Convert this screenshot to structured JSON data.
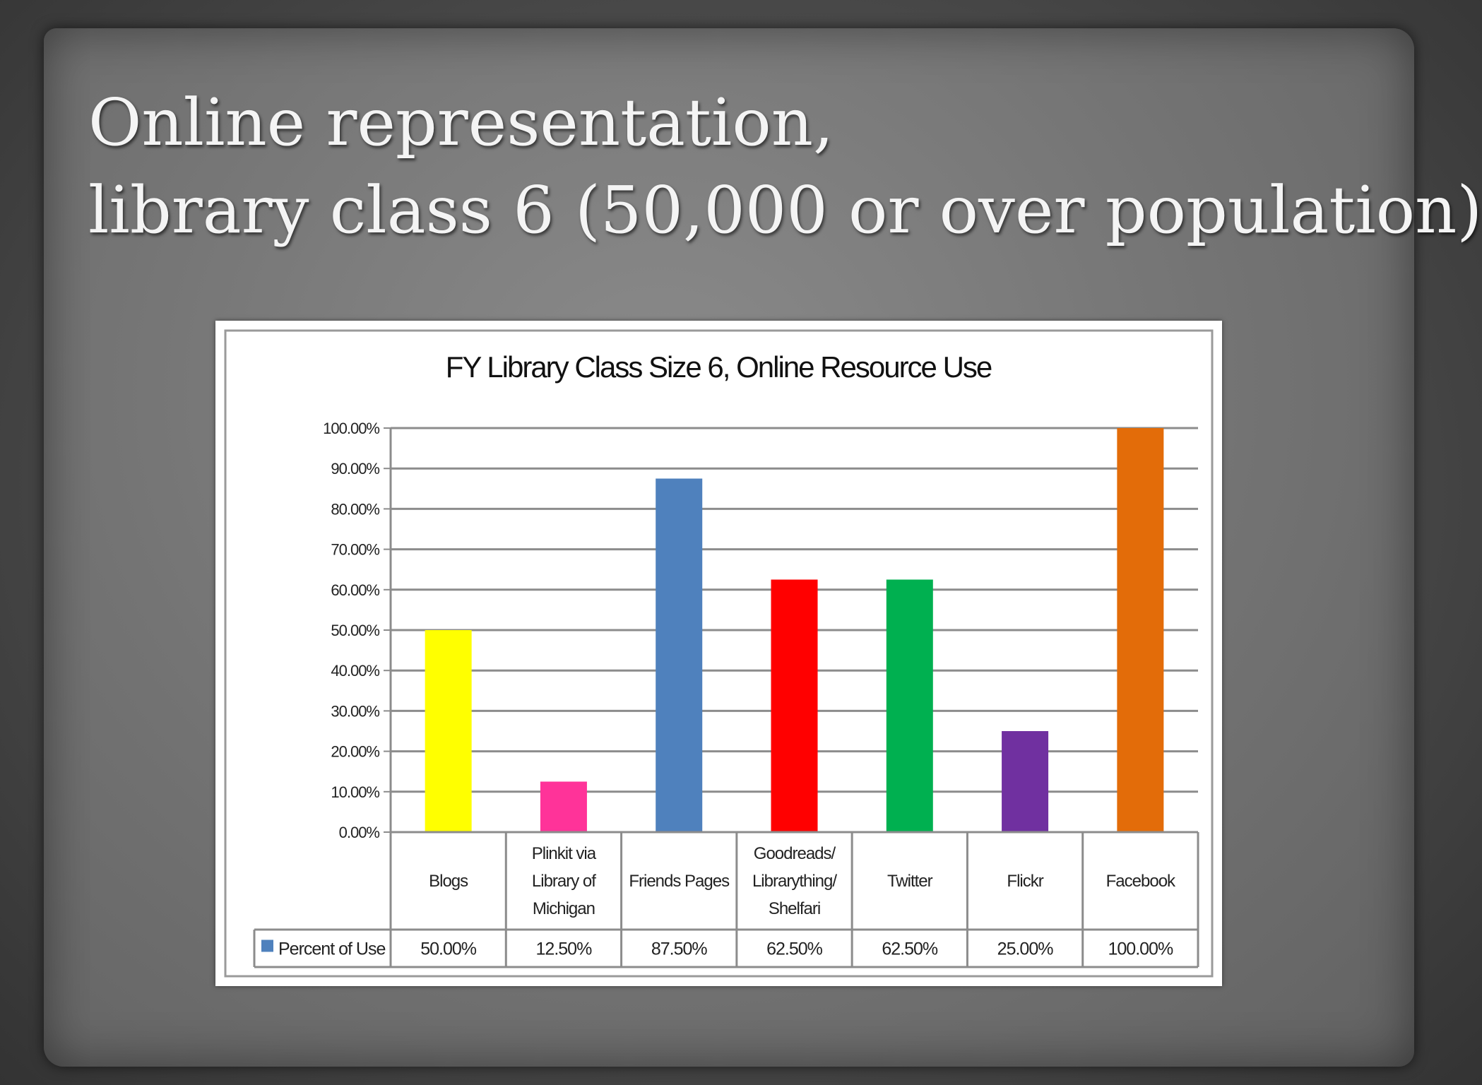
{
  "slide": {
    "title_line1": "Online representation,",
    "title_line2": "library class 6 (50,000 or over population)"
  },
  "chart_data": {
    "type": "bar",
    "title": "FY Library Class Size 6, Online Resource Use",
    "categories": [
      [
        "Blogs"
      ],
      [
        "Plinkit via",
        "Library of",
        "Michigan"
      ],
      [
        "Friends Pages"
      ],
      [
        "Goodreads/",
        "Librarything/",
        "Shelfari"
      ],
      [
        "Twitter"
      ],
      [
        "Flickr"
      ],
      [
        "Facebook"
      ]
    ],
    "series": [
      {
        "name": "Percent of Use",
        "values": [
          50.0,
          12.5,
          87.5,
          62.5,
          62.5,
          25.0,
          100.0
        ],
        "value_labels": [
          "50.00%",
          "12.50%",
          "87.50%",
          "62.50%",
          "62.50%",
          "25.00%",
          "100.00%"
        ],
        "legend_color": "#4f81bd"
      }
    ],
    "bar_colors": [
      "#ffff00",
      "#ff3399",
      "#4f81bd",
      "#ff0000",
      "#00b050",
      "#7030a0",
      "#e36c09"
    ],
    "yticks": [
      "0.00%",
      "10.00%",
      "20.00%",
      "30.00%",
      "40.00%",
      "50.00%",
      "60.00%",
      "70.00%",
      "80.00%",
      "90.00%",
      "100.00%"
    ],
    "ylim": [
      0,
      100
    ],
    "grid": true,
    "legend": "data-table",
    "xlabel": "",
    "ylabel": ""
  }
}
